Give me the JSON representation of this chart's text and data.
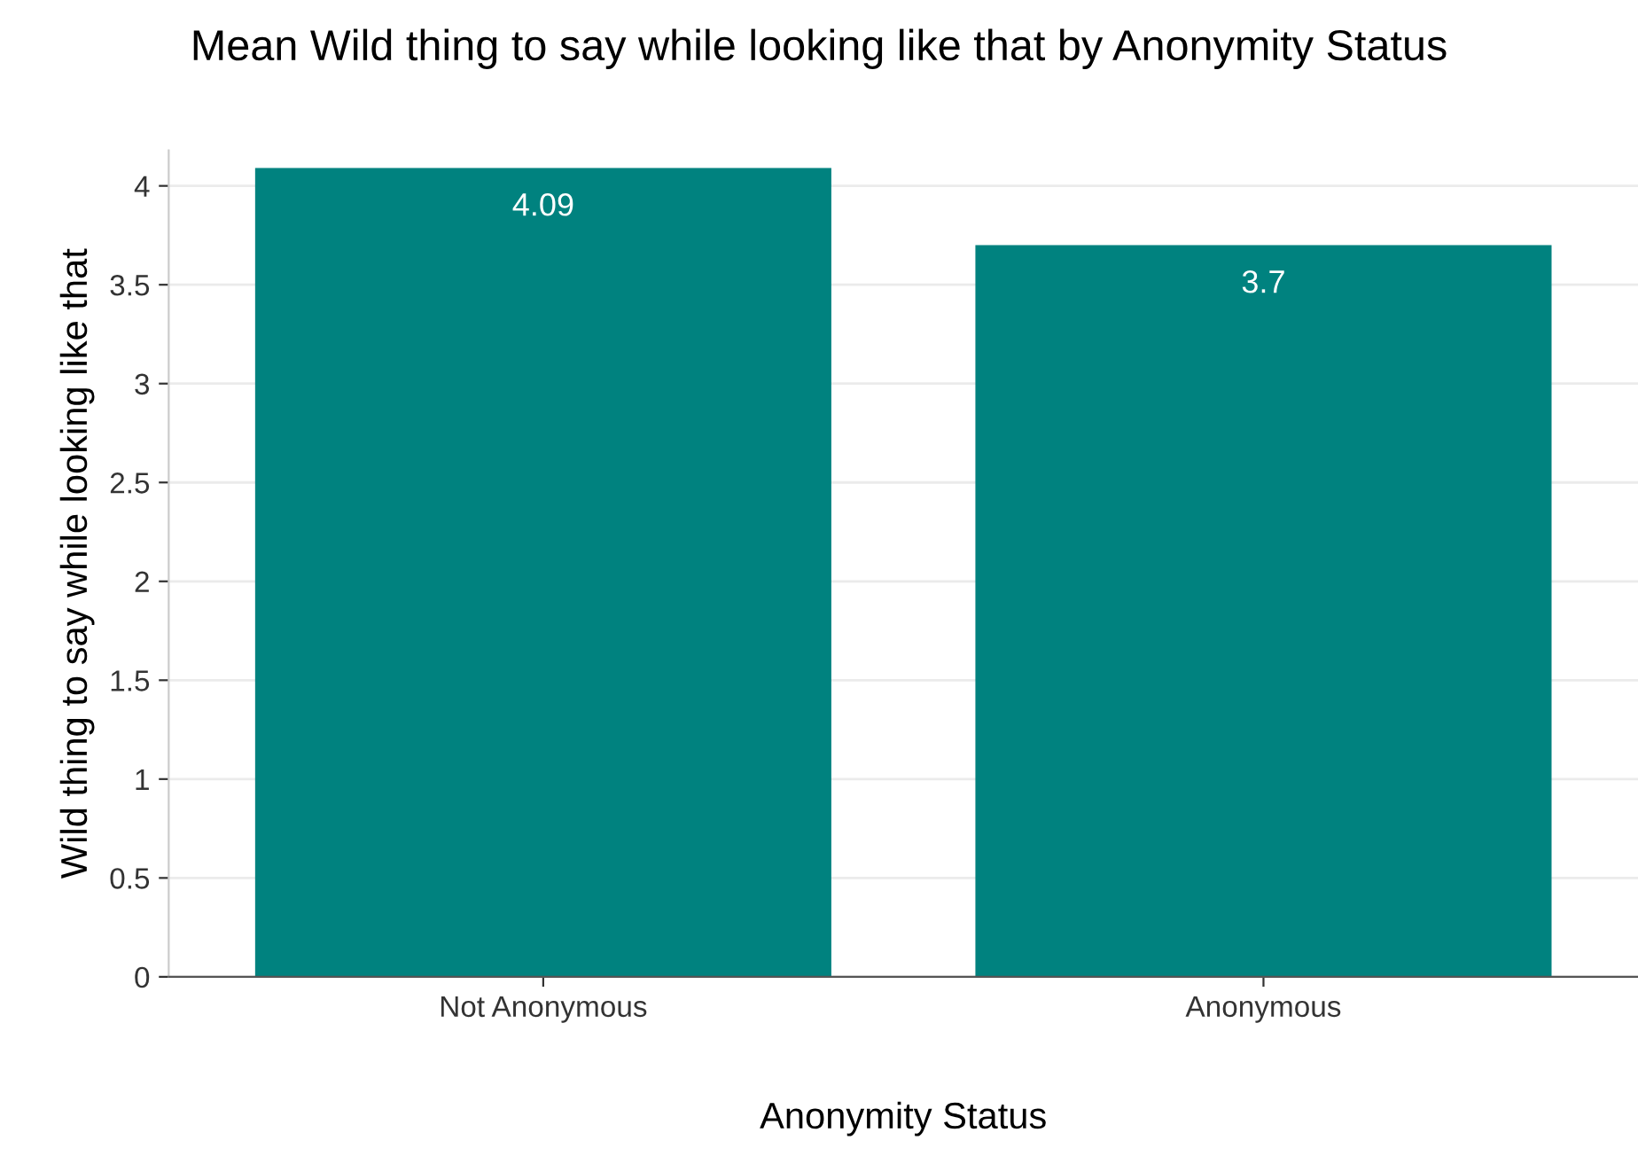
{
  "chart_data": {
    "type": "bar",
    "title": "Mean Wild thing to say while looking like that by Anonymity Status",
    "xlabel": "Anonymity Status",
    "ylabel": "Wild thing to say while looking like that",
    "categories": [
      "Not Anonymous",
      "Anonymous"
    ],
    "values": [
      4.09,
      3.7
    ],
    "color": "#00827f",
    "ylim": [
      0,
      4.18
    ],
    "yticks": [
      0,
      0.5,
      1,
      1.5,
      2,
      2.5,
      3,
      3.5,
      4
    ],
    "grid": "y",
    "data_labels": true,
    "legend": false
  }
}
